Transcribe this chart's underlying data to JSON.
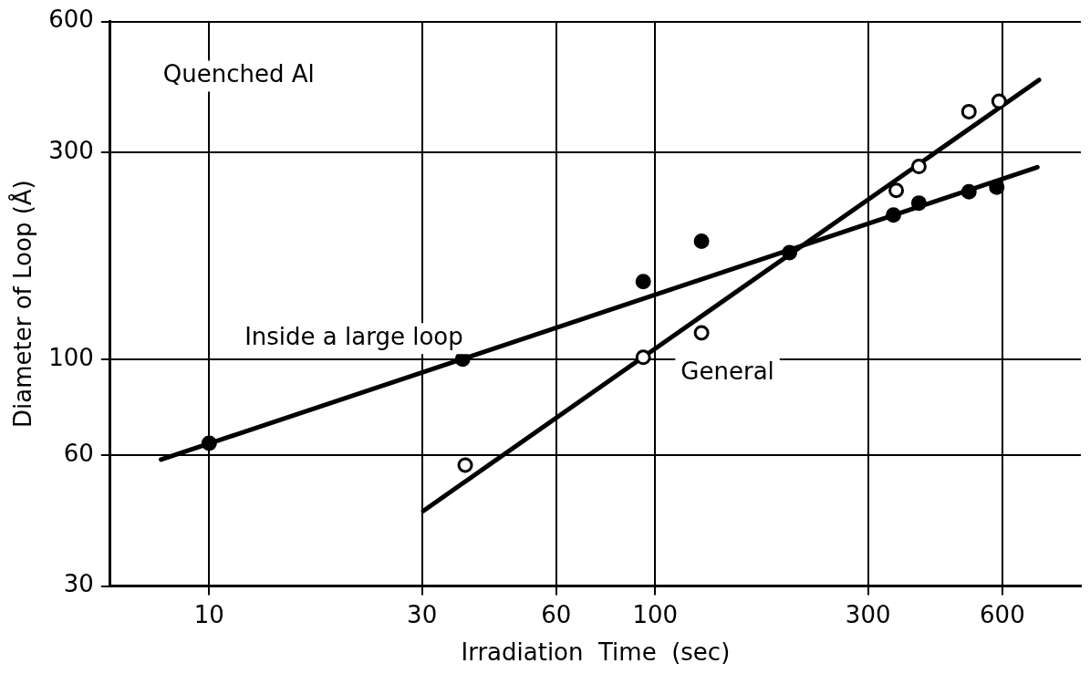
{
  "chart_data": {
    "type": "scatter",
    "title": "Quenched Al",
    "xlabel": "Irradiation  Time  (sec)",
    "ylabel": "Diameter of Loop (Å)",
    "log": "xy",
    "grid": true,
    "legend": false,
    "marker": "circle",
    "xlim": [
      6,
      900
    ],
    "xticks": [
      10,
      30,
      60,
      100,
      300,
      600
    ],
    "ylim": [
      30,
      600
    ],
    "yticks": [
      30,
      60,
      100,
      300,
      600
    ],
    "series": [
      {
        "type": "scatter",
        "color": "#000000",
        "x": [
          10,
          37,
          94,
          127,
          200,
          342,
          390,
          505,
          583
        ],
        "values": [
          64,
          100,
          151,
          187,
          176,
          215,
          229,
          243,
          249
        ]
      },
      {
        "type": "scatter",
        "color": "#000000",
        "x": [
          37.5,
          94,
          127,
          347,
          390,
          505,
          590
        ],
        "values": [
          57,
          101,
          115,
          245,
          278,
          372,
          393
        ]
      },
      {
        "type": "line",
        "name": "Inside a large loop",
        "color": "#000000",
        "line_style": "solid",
        "marker": "none",
        "x": [
          7.8,
          719
        ],
        "values": [
          58.7,
          277
        ]
      },
      {
        "type": "line",
        "name": "General",
        "color": "#000000",
        "line_style": "solid",
        "marker": "none",
        "x": [
          30.2,
          725
        ],
        "values": [
          44.7,
          440
        ]
      }
    ]
  }
}
